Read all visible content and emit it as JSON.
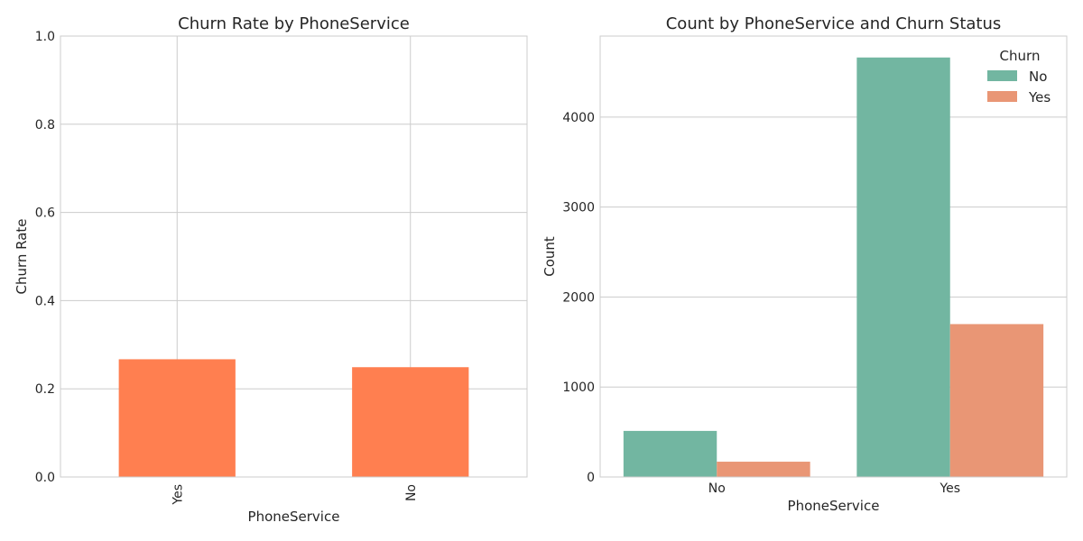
{
  "chart_data": [
    {
      "type": "bar",
      "title": "Churn Rate by PhoneService",
      "xlabel": "PhoneService",
      "ylabel": "Churn Rate",
      "categories": [
        "Yes",
        "No"
      ],
      "values": [
        0.267,
        0.249
      ],
      "ylim": [
        0,
        1
      ],
      "yticks": [
        "0.0",
        "0.2",
        "0.4",
        "0.6",
        "0.8",
        "1.0"
      ],
      "grid": true,
      "bar_color": "#ff7f50",
      "xtick_rotation": "vertical"
    },
    {
      "type": "bar",
      "title": "Count by PhoneService and Churn Status",
      "xlabel": "PhoneService",
      "ylabel": "Count",
      "categories": [
        "No",
        "Yes"
      ],
      "series": [
        {
          "name": "No",
          "values": [
            512,
            4662
          ],
          "color": "#72b6a1"
        },
        {
          "name": "Yes",
          "values": [
            170,
            1699
          ],
          "color": "#e99675"
        }
      ],
      "ylim": [
        0,
        4900
      ],
      "yticks": [
        "0",
        "1000",
        "2000",
        "3000",
        "4000"
      ],
      "grid": true,
      "legend": {
        "title": "Churn",
        "placement": "top-right"
      }
    }
  ]
}
